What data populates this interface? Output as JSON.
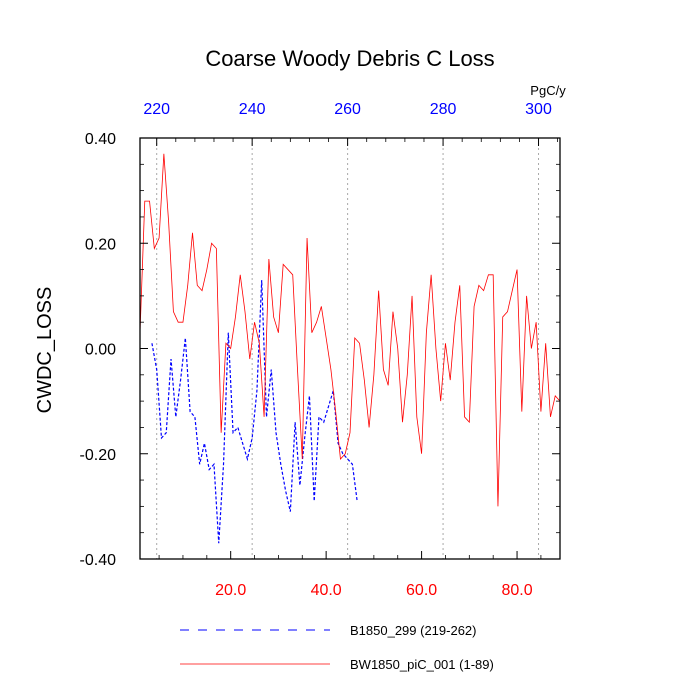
{
  "chart_data": {
    "type": "line",
    "title": "Coarse Woody Debris C Loss",
    "ylabel": "CWDC_LOSS",
    "units": "PgC/y",
    "ylim": [
      -0.4,
      0.4
    ],
    "y_ticks": [
      "0.40",
      "0.20",
      "0.00",
      "-0.20",
      "-0.40"
    ],
    "x_bottom": {
      "range": [
        1,
        89
      ],
      "ticks": [
        20,
        40,
        60,
        80
      ],
      "tick_labels": [
        "20.0",
        "40.0",
        "60.0",
        "80.0"
      ],
      "color": "#ff0000"
    },
    "x_top": {
      "range": [
        216.5,
        304.5
      ],
      "ticks": [
        220,
        240,
        260,
        280,
        300
      ],
      "tick_labels": [
        "220",
        "240",
        "260",
        "280",
        "300"
      ],
      "color": "#0000ff"
    },
    "grid": "vertical dotted at top-axis ticks",
    "legend_position": "bottom",
    "series": [
      {
        "name": "B1850_299 (219-262)",
        "color": "#0000ff",
        "dash": "dashed",
        "axis": "top",
        "x": [
          219,
          220,
          221,
          222,
          223,
          224,
          225,
          226,
          227,
          228,
          229,
          230,
          231,
          232,
          233,
          234,
          235,
          236,
          237,
          238,
          239,
          240,
          241,
          242,
          243,
          244,
          245,
          246,
          247,
          248,
          249,
          250,
          251,
          252,
          253,
          254,
          255,
          256,
          257,
          258,
          259,
          260,
          261,
          262
        ],
        "y": [
          0.01,
          -0.04,
          -0.17,
          -0.16,
          -0.02,
          -0.13,
          -0.06,
          0.02,
          -0.12,
          -0.13,
          -0.22,
          -0.18,
          -0.23,
          -0.22,
          -0.37,
          -0.22,
          0.03,
          -0.16,
          -0.15,
          -0.18,
          -0.21,
          -0.17,
          -0.08,
          0.13,
          -0.13,
          -0.04,
          -0.16,
          -0.22,
          -0.27,
          -0.31,
          -0.14,
          -0.26,
          -0.17,
          -0.09,
          -0.29,
          -0.13,
          -0.14,
          -0.11,
          -0.08,
          -0.18,
          -0.2,
          -0.21,
          -0.22,
          -0.29
        ]
      },
      {
        "name": "BW1850_piC_001 (1-89)",
        "color": "#ff0000",
        "dash": "solid",
        "axis": "bottom",
        "x": [
          1,
          2,
          3,
          4,
          5,
          6,
          7,
          8,
          9,
          10,
          11,
          12,
          13,
          14,
          15,
          16,
          17,
          18,
          19,
          20,
          21,
          22,
          23,
          24,
          25,
          26,
          27,
          28,
          29,
          30,
          31,
          32,
          33,
          34,
          35,
          36,
          37,
          38,
          39,
          40,
          41,
          42,
          43,
          44,
          45,
          46,
          47,
          48,
          49,
          50,
          51,
          52,
          53,
          54,
          55,
          56,
          57,
          58,
          59,
          60,
          61,
          62,
          63,
          64,
          65,
          66,
          67,
          68,
          69,
          70,
          71,
          72,
          73,
          74,
          75,
          76,
          77,
          78,
          79,
          80,
          81,
          82,
          83,
          84,
          85,
          86,
          87,
          88,
          89
        ],
        "y": [
          0.03,
          0.28,
          0.28,
          0.19,
          0.21,
          0.37,
          0.24,
          0.07,
          0.05,
          0.05,
          0.12,
          0.22,
          0.12,
          0.11,
          0.15,
          0.2,
          0.19,
          -0.16,
          0.01,
          0.0,
          0.06,
          0.14,
          0.07,
          -0.02,
          0.05,
          0.01,
          -0.13,
          0.17,
          0.06,
          0.03,
          0.16,
          0.15,
          0.14,
          -0.04,
          -0.21,
          0.21,
          0.03,
          0.05,
          0.08,
          0.02,
          -0.04,
          -0.12,
          -0.21,
          -0.2,
          -0.16,
          0.02,
          0.01,
          -0.06,
          -0.15,
          -0.05,
          0.11,
          -0.04,
          -0.07,
          0.07,
          0.0,
          -0.14,
          -0.05,
          0.1,
          -0.13,
          -0.2,
          0.03,
          0.14,
          0.0,
          -0.1,
          0.01,
          -0.06,
          0.05,
          0.12,
          -0.13,
          -0.14,
          0.08,
          0.12,
          0.11,
          0.14,
          0.14,
          -0.3,
          0.06,
          0.07,
          0.11,
          0.15,
          -0.12,
          0.1,
          0.0,
          0.05,
          -0.12,
          0.01,
          -0.13,
          -0.09,
          -0.1
        ]
      }
    ]
  }
}
